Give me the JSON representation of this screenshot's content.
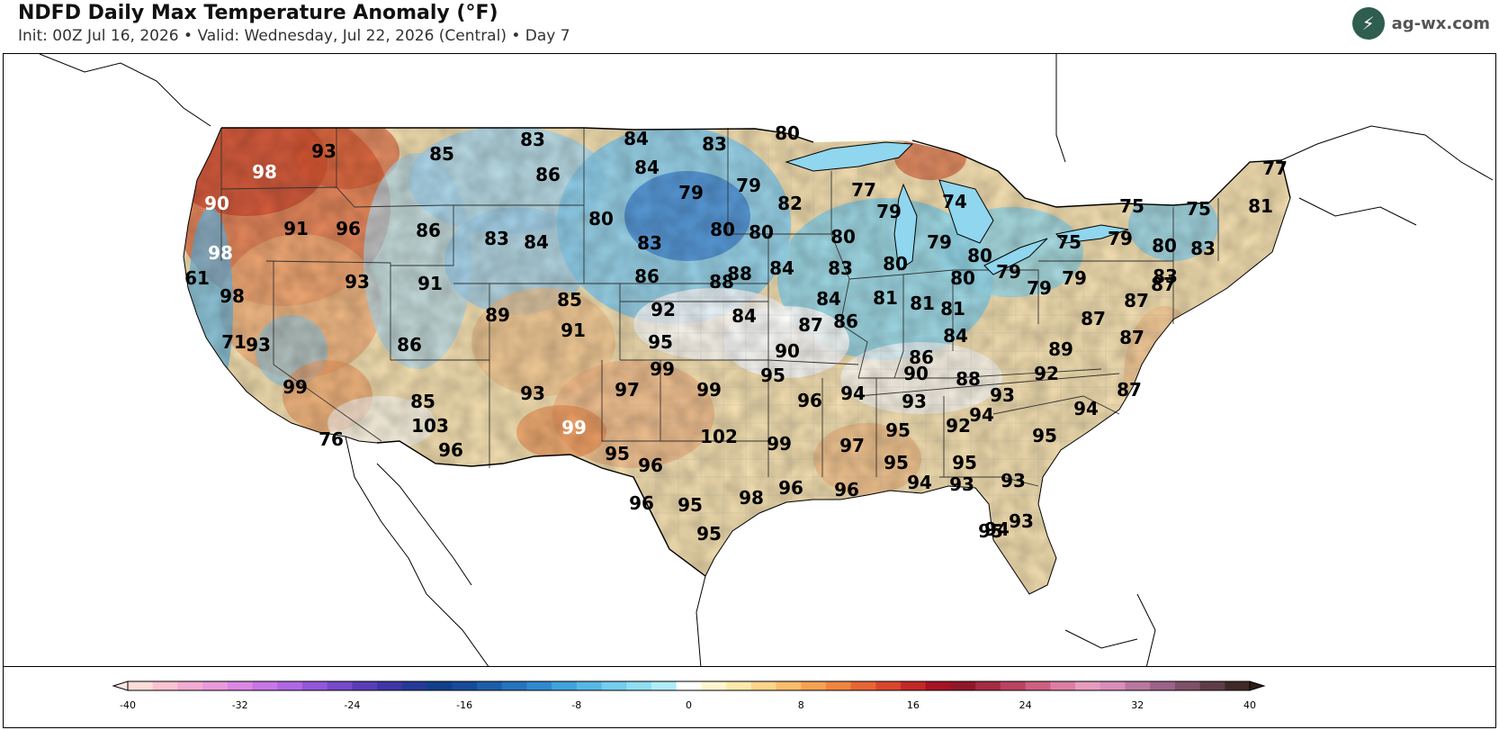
{
  "header": {
    "title": "NDFD Daily Max Temperature Anomaly (°F)",
    "subtitle": "Init: 00Z Jul 16, 2026  •  Valid: Wednesday, Jul 22, 2026 (Central)  •  Day 7",
    "brand": "ag-wx.com",
    "brand_icon": "lightning-logo-icon"
  },
  "colorbar": {
    "min": -40,
    "max": 40,
    "step": 2,
    "ticks": [
      "-40",
      "-32",
      "-24",
      "-16",
      "-8",
      "0",
      "8",
      "16",
      "24",
      "32",
      "40"
    ],
    "colors": [
      "#fcdcd6",
      "#f9c3cf",
      "#f2abd2",
      "#e99adb",
      "#da88e4",
      "#c876e6",
      "#b067e3",
      "#9457db",
      "#7649cc",
      "#5a3cba",
      "#3f35a7",
      "#253a98",
      "#103f8c",
      "#164b99",
      "#1d5ea8",
      "#2673bd",
      "#3189ce",
      "#40a2dd",
      "#56b8e6",
      "#72cdee",
      "#90def3",
      "#b0ecf6",
      "#ffffff",
      "#fff6cf",
      "#fde9ab",
      "#fcd58a",
      "#f9bd6c",
      "#f5a252",
      "#ef8540",
      "#e76535",
      "#d9462d",
      "#c32926",
      "#a61323",
      "#92172a",
      "#a62b43",
      "#ba4360",
      "#cd5f80",
      "#dc7ea2",
      "#e79cbe",
      "#d98dba",
      "#b9789f",
      "#9c6388",
      "#7f5068",
      "#5f3d48",
      "#3f2a27"
    ]
  },
  "city_labels": [
    {
      "v": "93",
      "style": "black"
    },
    {
      "v": "98",
      "style": "white"
    },
    {
      "v": "85",
      "style": "black"
    },
    {
      "v": "83",
      "style": "black"
    },
    {
      "v": "84",
      "style": "black"
    },
    {
      "v": "83",
      "style": "black"
    },
    {
      "v": "80",
      "style": "black"
    },
    {
      "v": "86",
      "style": "black"
    },
    {
      "v": "84",
      "style": "black"
    },
    {
      "v": "90",
      "style": "white"
    },
    {
      "v": "79",
      "style": "black"
    },
    {
      "v": "79",
      "style": "black"
    },
    {
      "v": "77",
      "style": "black"
    },
    {
      "v": "82",
      "style": "black"
    },
    {
      "v": "74",
      "style": "black"
    },
    {
      "v": "79",
      "style": "black"
    },
    {
      "v": "75",
      "style": "black"
    },
    {
      "v": "75",
      "style": "black"
    },
    {
      "v": "77",
      "style": "black"
    },
    {
      "v": "81",
      "style": "black"
    },
    {
      "v": "91",
      "style": "black"
    },
    {
      "v": "96",
      "style": "black"
    },
    {
      "v": "86",
      "style": "black"
    },
    {
      "v": "80",
      "style": "black"
    },
    {
      "v": "83",
      "style": "black"
    },
    {
      "v": "84",
      "style": "black"
    },
    {
      "v": "80",
      "style": "black"
    },
    {
      "v": "80",
      "style": "black"
    },
    {
      "v": "80",
      "style": "black"
    },
    {
      "v": "79",
      "style": "black"
    },
    {
      "v": "75",
      "style": "black"
    },
    {
      "v": "79",
      "style": "black"
    },
    {
      "v": "80",
      "style": "black"
    },
    {
      "v": "83",
      "style": "black"
    },
    {
      "v": "98",
      "style": "white"
    },
    {
      "v": "83",
      "style": "black"
    },
    {
      "v": "80",
      "style": "black"
    },
    {
      "v": "61",
      "style": "black"
    },
    {
      "v": "98",
      "style": "black"
    },
    {
      "v": "93",
      "style": "black"
    },
    {
      "v": "91",
      "style": "black"
    },
    {
      "v": "86",
      "style": "black"
    },
    {
      "v": "88",
      "style": "black"
    },
    {
      "v": "88",
      "style": "black"
    },
    {
      "v": "84",
      "style": "black"
    },
    {
      "v": "83",
      "style": "black"
    },
    {
      "v": "80",
      "style": "black"
    },
    {
      "v": "79",
      "style": "black"
    },
    {
      "v": "79",
      "style": "black"
    },
    {
      "v": "80",
      "style": "black"
    },
    {
      "v": "79",
      "style": "black"
    },
    {
      "v": "83",
      "style": "black"
    },
    {
      "v": "87",
      "style": "black"
    },
    {
      "v": "87",
      "style": "black"
    },
    {
      "v": "85",
      "style": "black"
    },
    {
      "v": "92",
      "style": "black"
    },
    {
      "v": "84",
      "style": "black"
    },
    {
      "v": "81",
      "style": "black"
    },
    {
      "v": "81",
      "style": "black"
    },
    {
      "v": "81",
      "style": "black"
    },
    {
      "v": "89",
      "style": "black"
    },
    {
      "v": "91",
      "style": "black"
    },
    {
      "v": "87",
      "style": "black"
    },
    {
      "v": "86",
      "style": "black"
    },
    {
      "v": "84",
      "style": "black"
    },
    {
      "v": "84",
      "style": "black"
    },
    {
      "v": "87",
      "style": "black"
    },
    {
      "v": "71",
      "style": "black"
    },
    {
      "v": "93",
      "style": "black"
    },
    {
      "v": "86",
      "style": "black"
    },
    {
      "v": "95",
      "style": "black"
    },
    {
      "v": "90",
      "style": "black"
    },
    {
      "v": "86",
      "style": "black"
    },
    {
      "v": "89",
      "style": "black"
    },
    {
      "v": "87",
      "style": "black"
    },
    {
      "v": "99",
      "style": "black"
    },
    {
      "v": "95",
      "style": "black"
    },
    {
      "v": "90",
      "style": "black"
    },
    {
      "v": "88",
      "style": "black"
    },
    {
      "v": "92",
      "style": "black"
    },
    {
      "v": "99",
      "style": "black"
    },
    {
      "v": "97",
      "style": "black"
    },
    {
      "v": "99",
      "style": "black"
    },
    {
      "v": "93",
      "style": "black"
    },
    {
      "v": "96",
      "style": "black"
    },
    {
      "v": "94",
      "style": "black"
    },
    {
      "v": "93",
      "style": "black"
    },
    {
      "v": "93",
      "style": "black"
    },
    {
      "v": "87",
      "style": "black"
    },
    {
      "v": "85",
      "style": "black"
    },
    {
      "v": "94",
      "style": "black"
    },
    {
      "v": "94",
      "style": "black"
    },
    {
      "v": "103",
      "style": "black"
    },
    {
      "v": "99",
      "style": "white"
    },
    {
      "v": "92",
      "style": "black"
    },
    {
      "v": "95",
      "style": "black"
    },
    {
      "v": "95",
      "style": "black"
    },
    {
      "v": "102",
      "style": "black"
    },
    {
      "v": "99",
      "style": "black"
    },
    {
      "v": "97",
      "style": "black"
    },
    {
      "v": "76",
      "style": "black"
    },
    {
      "v": "96",
      "style": "black"
    },
    {
      "v": "95",
      "style": "black"
    },
    {
      "v": "96",
      "style": "black"
    },
    {
      "v": "95",
      "style": "black"
    },
    {
      "v": "95",
      "style": "black"
    },
    {
      "v": "94",
      "style": "black"
    },
    {
      "v": "93",
      "style": "black"
    },
    {
      "v": "93",
      "style": "black"
    },
    {
      "v": "95",
      "style": "black"
    },
    {
      "v": "96",
      "style": "black"
    },
    {
      "v": "98",
      "style": "black"
    },
    {
      "v": "96",
      "style": "black"
    },
    {
      "v": "95",
      "style": "black"
    },
    {
      "v": "96",
      "style": "black"
    },
    {
      "v": "93",
      "style": "black"
    },
    {
      "v": "95",
      "style": "black"
    },
    {
      "v": "94",
      "style": "black"
    }
  ]
}
